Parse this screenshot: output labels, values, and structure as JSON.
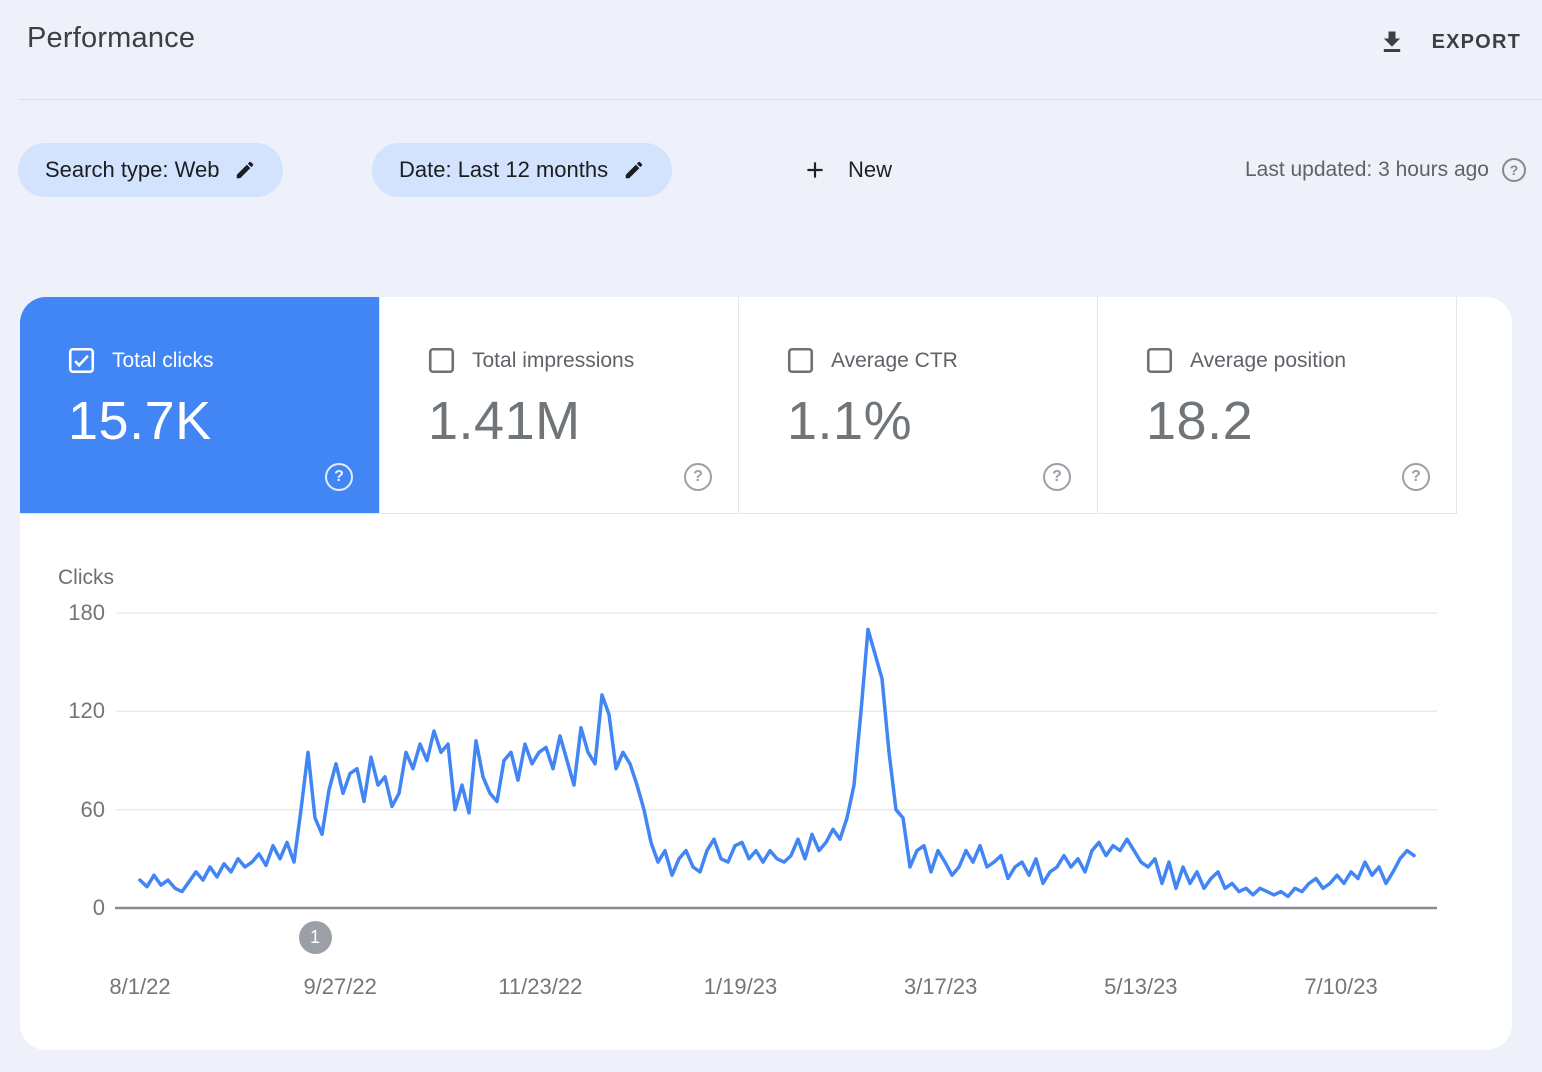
{
  "header": {
    "title": "Performance",
    "export_label": "EXPORT"
  },
  "filters": {
    "search_type_chip": "Search type: Web",
    "date_chip": "Date: Last 12 months",
    "new_button": "New",
    "last_updated": "Last updated: 3 hours ago"
  },
  "metric_cards": [
    {
      "label": "Total clicks",
      "value": "15.7K",
      "checked": true
    },
    {
      "label": "Total impressions",
      "value": "1.41M",
      "checked": false
    },
    {
      "label": "Average CTR",
      "value": "1.1%",
      "checked": false
    },
    {
      "label": "Average position",
      "value": "18.2",
      "checked": false
    }
  ],
  "icons": {
    "export": "download-icon",
    "chip_edit": "pencil-icon",
    "new": "plus-icon",
    "help": "question-circle-icon",
    "checkbox_checked": "checked-checkbox-icon",
    "checkbox_unchecked": "unchecked-checkbox-icon"
  },
  "colors": {
    "accent_blue": "#4285f4",
    "chip_background": "#d3e3fd",
    "line_color": "#4285f4",
    "grid_color": "#e9ebee",
    "axis_color": "#888c91",
    "marker_gray": "#9aa0a6",
    "page_background": "#eef1f9"
  },
  "chart_data": {
    "type": "line",
    "title": "",
    "ylabel": "Clicks",
    "ylim": [
      0,
      180
    ],
    "y_ticks": [
      180,
      120,
      60,
      0
    ],
    "x_tick_labels": [
      "8/1/22",
      "9/27/22",
      "11/23/22",
      "1/19/23",
      "3/17/23",
      "5/13/23",
      "7/10/23"
    ],
    "grid": true,
    "legend": "none",
    "annotation": {
      "label": "1",
      "index": 25
    },
    "series": [
      {
        "name": "Clicks",
        "values": [
          17,
          13,
          20,
          14,
          17,
          12,
          10,
          16,
          22,
          17,
          25,
          19,
          27,
          22,
          30,
          25,
          28,
          33,
          26,
          38,
          30,
          40,
          28,
          60,
          95,
          55,
          45,
          72,
          88,
          70,
          82,
          85,
          65,
          92,
          75,
          80,
          62,
          70,
          95,
          85,
          100,
          90,
          108,
          95,
          100,
          60,
          75,
          58,
          102,
          80,
          70,
          65,
          90,
          95,
          78,
          100,
          88,
          95,
          98,
          85,
          105,
          90,
          75,
          110,
          95,
          88,
          130,
          118,
          85,
          95,
          88,
          75,
          60,
          40,
          28,
          35,
          20,
          30,
          35,
          25,
          22,
          35,
          42,
          30,
          28,
          38,
          40,
          30,
          35,
          28,
          35,
          30,
          28,
          32,
          42,
          30,
          45,
          35,
          40,
          48,
          42,
          55,
          75,
          120,
          170,
          155,
          140,
          95,
          60,
          55,
          25,
          35,
          38,
          22,
          35,
          28,
          20,
          25,
          35,
          28,
          38,
          25,
          28,
          32,
          18,
          25,
          28,
          20,
          30,
          15,
          22,
          25,
          32,
          25,
          30,
          22,
          35,
          40,
          32,
          38,
          35,
          42,
          35,
          28,
          25,
          30,
          15,
          28,
          12,
          25,
          15,
          22,
          12,
          18,
          22,
          12,
          15,
          10,
          12,
          8,
          12,
          10,
          8,
          10,
          7,
          12,
          10,
          15,
          18,
          12,
          15,
          20,
          15,
          22,
          18,
          28,
          20,
          25,
          15,
          22,
          30,
          35,
          32
        ]
      }
    ]
  }
}
